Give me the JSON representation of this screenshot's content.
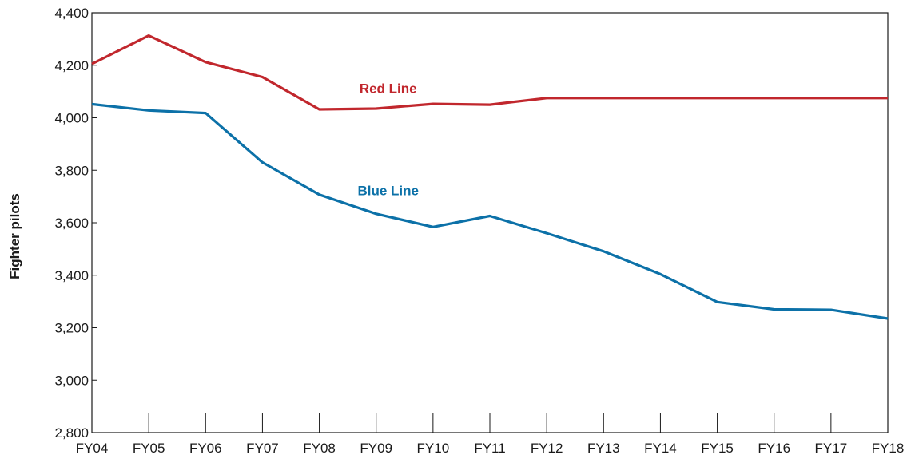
{
  "chart_data": {
    "type": "line",
    "title": "",
    "xlabel": "",
    "ylabel": "Fighter pilots",
    "categories": [
      "FY04",
      "FY05",
      "FY06",
      "FY07",
      "FY08",
      "FY09",
      "FY10",
      "FY11",
      "FY12",
      "FY13",
      "FY14",
      "FY15",
      "FY16",
      "FY17",
      "FY18"
    ],
    "y_tick_labels": [
      "2,800",
      "3,000",
      "3,200",
      "3,400",
      "3,600",
      "3,800",
      "4,000",
      "4,200",
      "4,400"
    ],
    "y_ticks": [
      2800,
      3000,
      3200,
      3400,
      3600,
      3800,
      4000,
      4200,
      4400
    ],
    "ylim": [
      2800,
      4400
    ],
    "grid": false,
    "series": [
      {
        "name": "Red Line",
        "color": "#c1272d",
        "values": [
          4205,
          4313,
          4212,
          4155,
          4032,
          4035,
          4053,
          4050,
          4075,
          4075,
          4075,
          4075,
          4075,
          4075,
          4075
        ]
      },
      {
        "name": "Blue Line",
        "color": "#0c71a8",
        "values": [
          4052,
          4028,
          4018,
          3830,
          3707,
          3634,
          3584,
          3626,
          3560,
          3491,
          3404,
          3298,
          3270,
          3268,
          3235
        ]
      }
    ],
    "annotations": [
      {
        "text": "Red Line",
        "series": 0,
        "x": "FY09",
        "y": 4112,
        "color": "#c1272d"
      },
      {
        "text": "Blue Line",
        "series": 1,
        "x": "FY09",
        "y": 3723,
        "color": "#0c71a8"
      }
    ]
  }
}
